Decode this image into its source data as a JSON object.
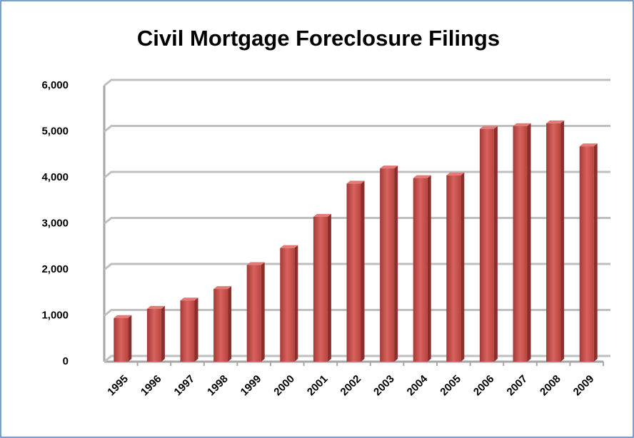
{
  "chart_data": {
    "type": "bar",
    "title": "Civil Mortgage Foreclosure Filings",
    "categories": [
      "1995",
      "1996",
      "1997",
      "1998",
      "1999",
      "2000",
      "2001",
      "2002",
      "2003",
      "2004",
      "2005",
      "2006",
      "2007",
      "2008",
      "2009"
    ],
    "values": [
      950,
      1150,
      1330,
      1580,
      2100,
      2470,
      3150,
      3870,
      4200,
      3990,
      4050,
      5060,
      5120,
      5180,
      4680
    ],
    "color": "#c0504d",
    "ylim": [
      0,
      6000
    ],
    "yticks": [
      0,
      {
        "value": 1000,
        "label": "1,000"
      },
      {
        "value": 2000,
        "label": "2,000"
      },
      {
        "value": 3000,
        "label": "3,000"
      },
      {
        "value": 4000,
        "label": "4,000"
      },
      {
        "value": 5000,
        "label": "5,000"
      },
      {
        "value": 6000,
        "label": "6,000"
      }
    ],
    "grid": true
  }
}
